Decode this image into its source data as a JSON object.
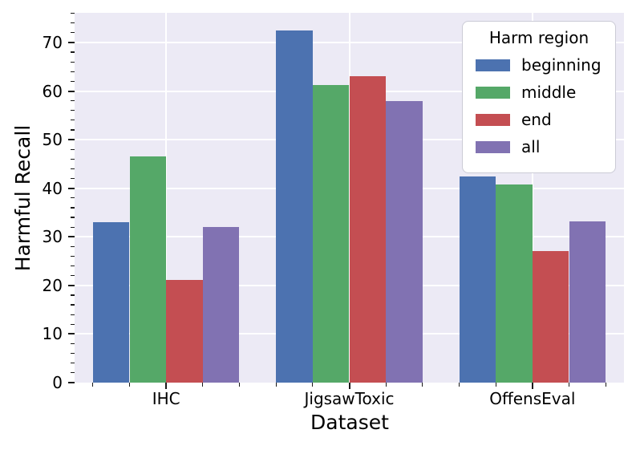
{
  "figure": {
    "background_color": "#ffffff",
    "plot_background_color": "#ECEAF5",
    "grid_color": "#ffffff",
    "tick_color": "#1a1a1a",
    "legend_border_color": "#cbcbd6"
  },
  "chart_data": {
    "type": "bar",
    "title": "",
    "xlabel": "Dataset",
    "ylabel": "Harmful Recall",
    "categories": [
      "IHC",
      "JigsawToxic",
      "OffensEval"
    ],
    "series": [
      {
        "name": "beginning",
        "color": "#4C72B0",
        "values": [
          33.0,
          72.5,
          42.4
        ]
      },
      {
        "name": "middle",
        "color": "#55A868",
        "values": [
          46.5,
          61.2,
          40.7
        ]
      },
      {
        "name": "end",
        "color": "#C44E52",
        "values": [
          21.2,
          63.1,
          27.0
        ]
      },
      {
        "name": "all",
        "color": "#8172B2",
        "values": [
          32.1,
          58.0,
          33.2
        ]
      }
    ],
    "ylim": [
      0,
      76.1
    ],
    "yticks": [
      0,
      10,
      20,
      30,
      40,
      50,
      60,
      70
    ],
    "y_minor_step": 2,
    "x_minor_step": 0.2,
    "grid": true,
    "legend": {
      "title": "Harm region",
      "position": "upper right"
    }
  }
}
